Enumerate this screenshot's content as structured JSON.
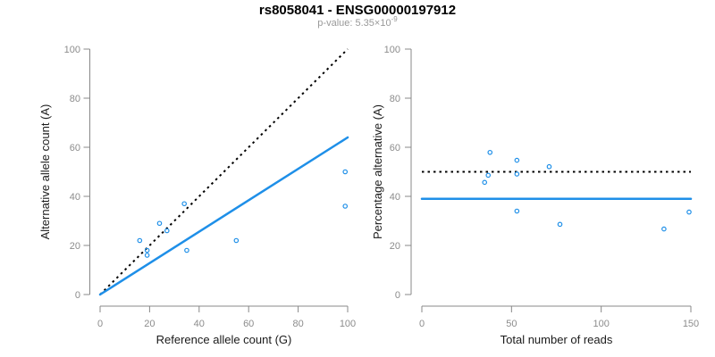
{
  "header": {
    "title": "rs8058041 - ENSG00000197912",
    "pvalue_label": "p-value: ",
    "pvalue_text": "p-value: 5.35×10",
    "pvalue_exponent": "-9"
  },
  "colors": {
    "accent_blue": "#1E8FE8",
    "identity_black": "#000000",
    "axis_gray": "#888888",
    "tick_label_gray": "#8c8c8c",
    "axis_title_dark": "#1a1a1a",
    "subtitle_gray": "#999999",
    "background": "#ffffff"
  },
  "chart_data": [
    {
      "type": "scatter",
      "name": "allele-counts-scatter",
      "xlabel": "Reference allele count (G)",
      "ylabel": "Alternative allele count (A)",
      "xlim": [
        0,
        100
      ],
      "ylim": [
        0,
        100
      ],
      "xticks": [
        0,
        20,
        40,
        60,
        80,
        100
      ],
      "yticks": [
        0,
        20,
        40,
        60,
        80,
        100
      ],
      "grid": false,
      "point_color": "#1E8FE8",
      "points": [
        [
          16,
          22
        ],
        [
          19,
          18
        ],
        [
          19,
          16
        ],
        [
          24,
          29
        ],
        [
          27,
          26
        ],
        [
          34,
          37
        ],
        [
          35,
          18
        ],
        [
          55,
          22
        ],
        [
          99,
          50
        ],
        [
          99,
          36
        ]
      ],
      "lines": [
        {
          "name": "identity",
          "style": "dotted",
          "color": "#000000",
          "from": [
            0,
            0
          ],
          "to": [
            100,
            100
          ]
        },
        {
          "name": "fit",
          "style": "solid",
          "color": "#1E8FE8",
          "from": [
            0,
            0
          ],
          "to": [
            100,
            64
          ]
        }
      ]
    },
    {
      "type": "scatter",
      "name": "percentage-vs-reads-scatter",
      "xlabel": "Total number of reads",
      "ylabel": "Percentage alternative (A)",
      "xlim": [
        0,
        150
      ],
      "ylim": [
        0,
        100
      ],
      "xticks": [
        0,
        50,
        100,
        150
      ],
      "yticks": [
        0,
        20,
        40,
        60,
        80,
        100
      ],
      "grid": false,
      "point_color": "#1E8FE8",
      "points": [
        [
          38,
          57.9
        ],
        [
          37,
          48.6
        ],
        [
          35,
          45.7
        ],
        [
          53,
          54.7
        ],
        [
          53,
          49.1
        ],
        [
          71,
          52.1
        ],
        [
          53,
          34.0
        ],
        [
          77,
          28.6
        ],
        [
          135,
          26.7
        ],
        [
          149,
          33.6
        ]
      ],
      "lines": [
        {
          "name": "expected-50pct",
          "style": "dotted",
          "color": "#000000",
          "from": [
            0,
            50
          ],
          "to": [
            150,
            50
          ]
        },
        {
          "name": "observed-mean",
          "style": "solid",
          "color": "#1E8FE8",
          "from": [
            0,
            39
          ],
          "to": [
            150,
            39
          ]
        }
      ]
    }
  ]
}
